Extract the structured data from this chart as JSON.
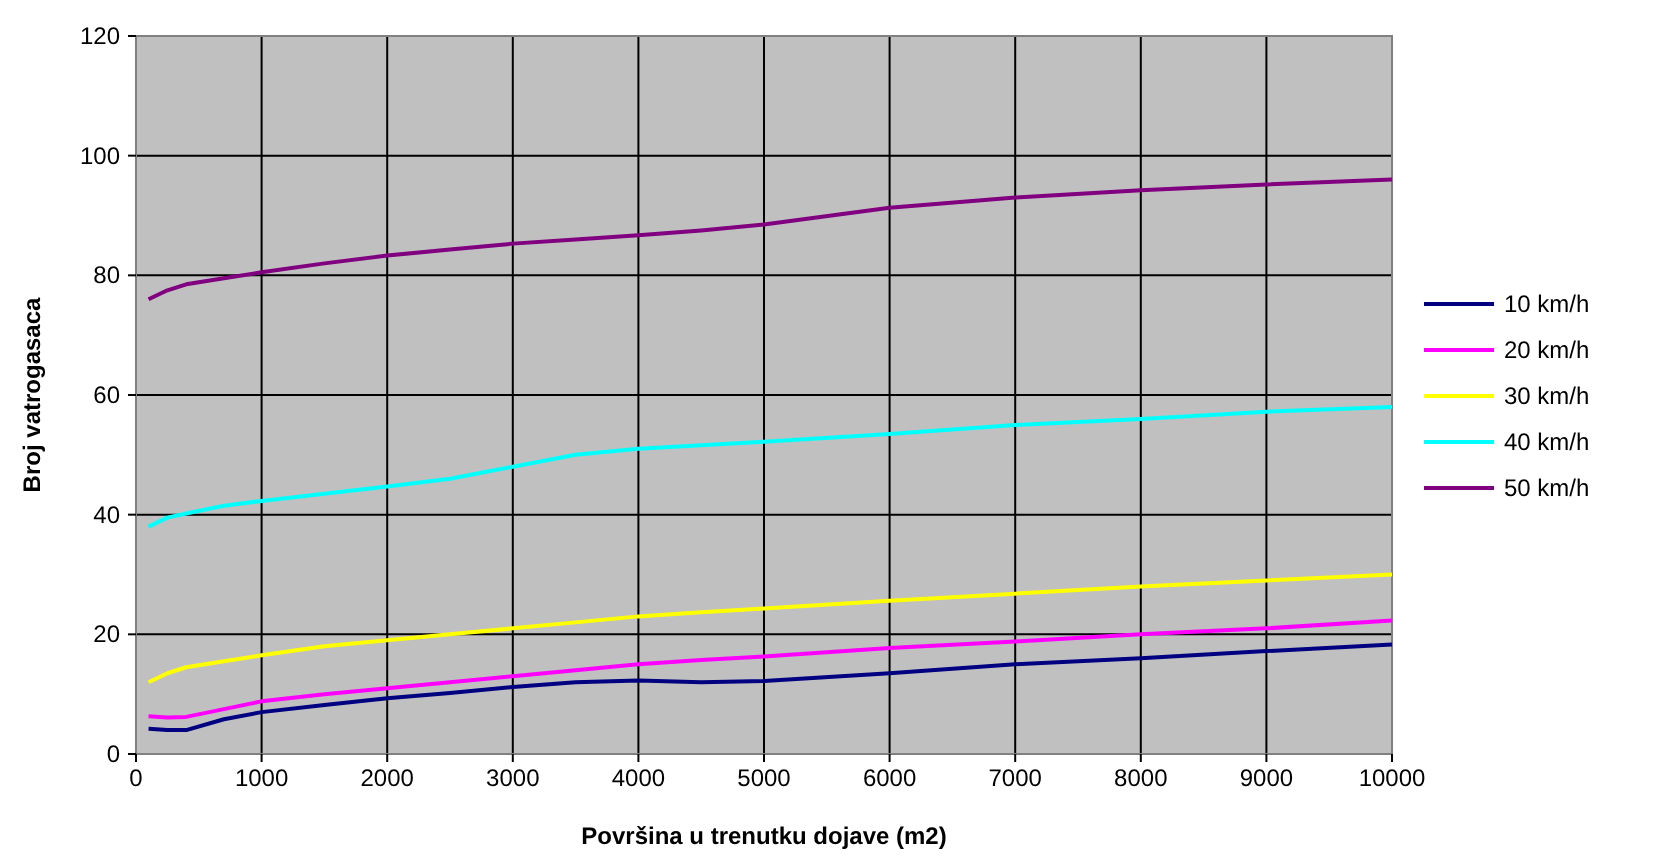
{
  "chart_data": {
    "type": "line",
    "xlabel": "Površina u trenutku dojave (m2)",
    "ylabel": "Broj vatrogasaca",
    "x": [
      100,
      250,
      400,
      700,
      1000,
      1500,
      2000,
      2500,
      3000,
      3500,
      4000,
      4500,
      5000,
      6000,
      7000,
      8000,
      9000,
      10000
    ],
    "series": [
      {
        "name": "10 km/h",
        "color": "#000080",
        "values": [
          4.2,
          4,
          4,
          5.8,
          7,
          8.2,
          9.3,
          10.2,
          11.2,
          12,
          12.3,
          12,
          12.2,
          13.5,
          15,
          16,
          17.2,
          18.3
        ]
      },
      {
        "name": "20 km/h",
        "color": "#ff00ff",
        "values": [
          6.3,
          6.1,
          6.2,
          7.5,
          8.8,
          10,
          11,
          12,
          13,
          14,
          15,
          15.7,
          16.3,
          17.7,
          18.8,
          20,
          21,
          22.3
        ]
      },
      {
        "name": "30 km/h",
        "color": "#ffff00",
        "values": [
          12,
          13.5,
          14.5,
          15.5,
          16.5,
          18,
          19,
          20,
          21,
          22,
          23,
          23.7,
          24.3,
          25.6,
          26.8,
          28,
          29,
          30
        ]
      },
      {
        "name": "40 km/h",
        "color": "#00ffff",
        "values": [
          38,
          39.5,
          40.2,
          41.5,
          42.3,
          43.5,
          44.7,
          46,
          48,
          50,
          51,
          51.6,
          52.2,
          53.5,
          55,
          56,
          57.2,
          58
        ]
      },
      {
        "name": "50 km/h",
        "color": "#800080",
        "values": [
          76,
          77.5,
          78.5,
          79.5,
          80.5,
          82,
          83.3,
          84.3,
          85.3,
          86,
          86.7,
          87.5,
          88.5,
          91.3,
          93,
          94.2,
          95.2,
          96
        ]
      }
    ],
    "xlim": [
      0,
      10000
    ],
    "xticks": [
      0,
      1000,
      2000,
      3000,
      4000,
      5000,
      6000,
      7000,
      8000,
      9000,
      10000
    ],
    "ylim": [
      0,
      120
    ],
    "yticks": [
      0,
      20,
      40,
      60,
      80,
      100,
      120
    ],
    "grid": true,
    "legend": "right",
    "marker": "none",
    "line_style": "solid"
  }
}
